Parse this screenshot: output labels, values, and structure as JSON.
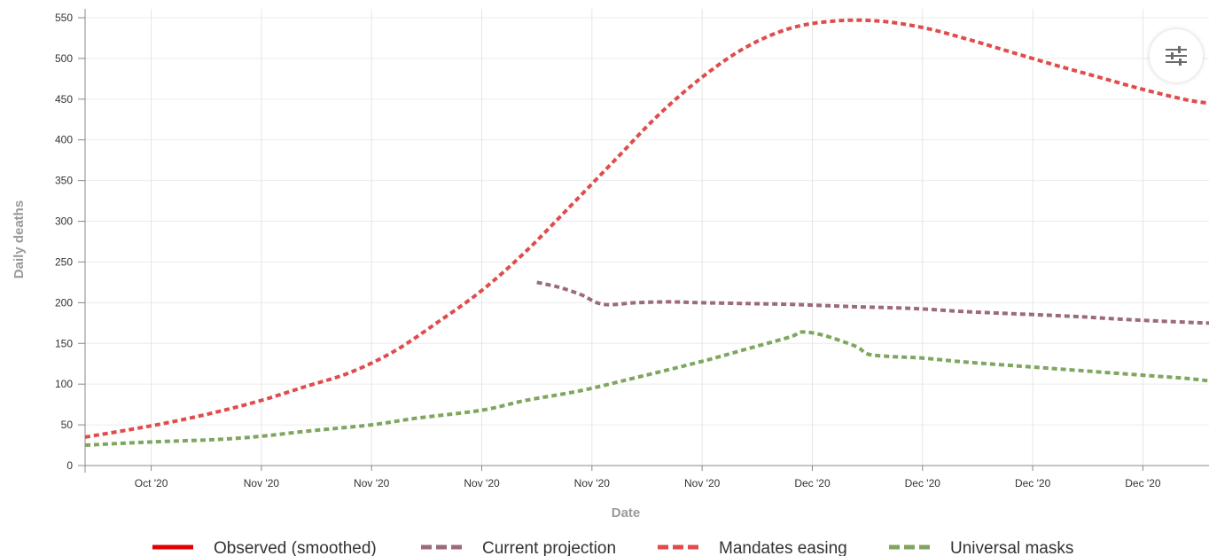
{
  "chart_data": {
    "type": "line",
    "xlabel": "Date",
    "ylabel": "Daily deaths",
    "ylim": [
      0,
      550
    ],
    "yticks": [
      0,
      50,
      100,
      150,
      200,
      250,
      300,
      350,
      400,
      450,
      500,
      550
    ],
    "xlim": [
      0,
      102
    ],
    "xticks": [
      {
        "x": 6,
        "label": "Oct '20"
      },
      {
        "x": 16,
        "label": "Nov '20"
      },
      {
        "x": 26,
        "label": "Nov '20"
      },
      {
        "x": 36,
        "label": "Nov '20"
      },
      {
        "x": 46,
        "label": "Nov '20"
      },
      {
        "x": 56,
        "label": "Nov '20"
      },
      {
        "x": 66,
        "label": "Dec '20"
      },
      {
        "x": 76,
        "label": "Dec '20"
      },
      {
        "x": 86,
        "label": "Dec '20"
      },
      {
        "x": 96,
        "label": "Dec '20"
      }
    ],
    "grid": true,
    "legend_position": "bottom",
    "series": [
      {
        "name": "Observed (smoothed)",
        "color": "#e00000",
        "style": "solid",
        "points": []
      },
      {
        "name": "Current projection",
        "color": "#9b6b7a",
        "style": "dashed",
        "points": [
          [
            41,
            225
          ],
          [
            43,
            219
          ],
          [
            45,
            210
          ],
          [
            47,
            198
          ],
          [
            50,
            200
          ],
          [
            53,
            201
          ],
          [
            56,
            200
          ],
          [
            60,
            199
          ],
          [
            64,
            198
          ],
          [
            66,
            197
          ],
          [
            70,
            195
          ],
          [
            75,
            193
          ],
          [
            80,
            189
          ],
          [
            85,
            186
          ],
          [
            90,
            183
          ],
          [
            95,
            179
          ],
          [
            100,
            176
          ],
          [
            102,
            175
          ]
        ]
      },
      {
        "name": "Mandates easing",
        "color": "#e04c4c",
        "style": "dashed",
        "points": [
          [
            0,
            35
          ],
          [
            4,
            44
          ],
          [
            8,
            54
          ],
          [
            12,
            66
          ],
          [
            16,
            80
          ],
          [
            20,
            97
          ],
          [
            24,
            114
          ],
          [
            28,
            140
          ],
          [
            32,
            176
          ],
          [
            36,
            215
          ],
          [
            40,
            263
          ],
          [
            44,
            318
          ],
          [
            48,
            374
          ],
          [
            52,
            430
          ],
          [
            56,
            477
          ],
          [
            60,
            514
          ],
          [
            64,
            537
          ],
          [
            68,
            546
          ],
          [
            72,
            546
          ],
          [
            76,
            538
          ],
          [
            80,
            524
          ],
          [
            84,
            508
          ],
          [
            88,
            492
          ],
          [
            92,
            477
          ],
          [
            96,
            462
          ],
          [
            100,
            449
          ],
          [
            102,
            445
          ]
        ]
      },
      {
        "name": "Universal masks",
        "color": "#7fa65e",
        "style": "dashed",
        "points": [
          [
            0,
            25
          ],
          [
            6,
            29
          ],
          [
            12,
            32
          ],
          [
            16,
            36
          ],
          [
            20,
            42
          ],
          [
            26,
            50
          ],
          [
            30,
            58
          ],
          [
            36,
            68
          ],
          [
            40,
            80
          ],
          [
            45,
            92
          ],
          [
            50,
            108
          ],
          [
            56,
            128
          ],
          [
            60,
            143
          ],
          [
            64,
            158
          ],
          [
            65,
            164
          ],
          [
            67,
            160
          ],
          [
            70,
            146
          ],
          [
            71,
            137
          ],
          [
            73,
            134
          ],
          [
            76,
            132
          ],
          [
            80,
            127
          ],
          [
            85,
            122
          ],
          [
            90,
            117
          ],
          [
            96,
            111
          ],
          [
            100,
            107
          ],
          [
            102,
            104
          ]
        ]
      }
    ]
  },
  "toolbar": {
    "settings_icon": "sliders-icon"
  }
}
